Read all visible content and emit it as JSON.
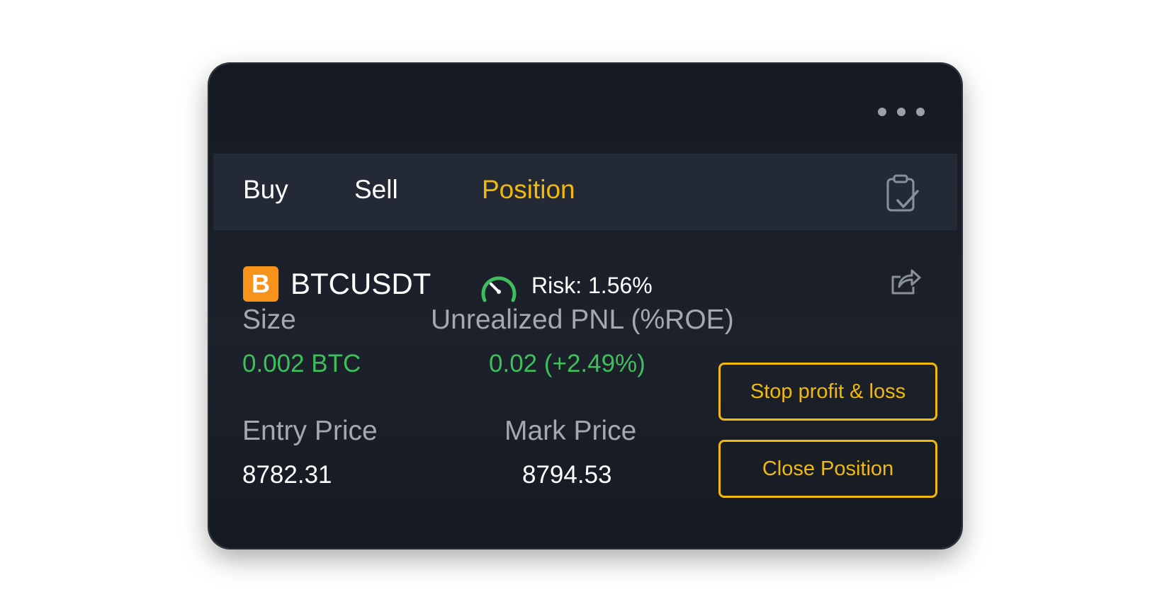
{
  "tabs": [
    {
      "label": "Buy"
    },
    {
      "label": "Sell"
    },
    {
      "label": "Position",
      "active": true
    }
  ],
  "position": {
    "coin_letter": "B",
    "symbol": "BTCUSDT",
    "risk": "Risk: 1.56%",
    "size_label": "Size",
    "size_value": "0.002 BTC",
    "pnl_label": "Unrealized PNL (%ROE)",
    "pnl_value": "0.02 (+2.49%)",
    "entry_label": "Entry Price",
    "entry_value": "8782.31",
    "mark_label": "Mark Price",
    "mark_value": "8794.53"
  },
  "actions": {
    "stop_label": "Stop profit & loss",
    "close_label": "Close Position"
  },
  "icons": {
    "menu": "more-dots-icon",
    "orders": "clipboard-check-icon",
    "risk": "gauge-icon",
    "share": "share-icon"
  },
  "colors": {
    "accent": "#f0b90b",
    "positive": "#3fbf5b",
    "coin": "#f7921a",
    "card_bg": "#1a1e26",
    "tabbar_bg": "#232a36"
  }
}
